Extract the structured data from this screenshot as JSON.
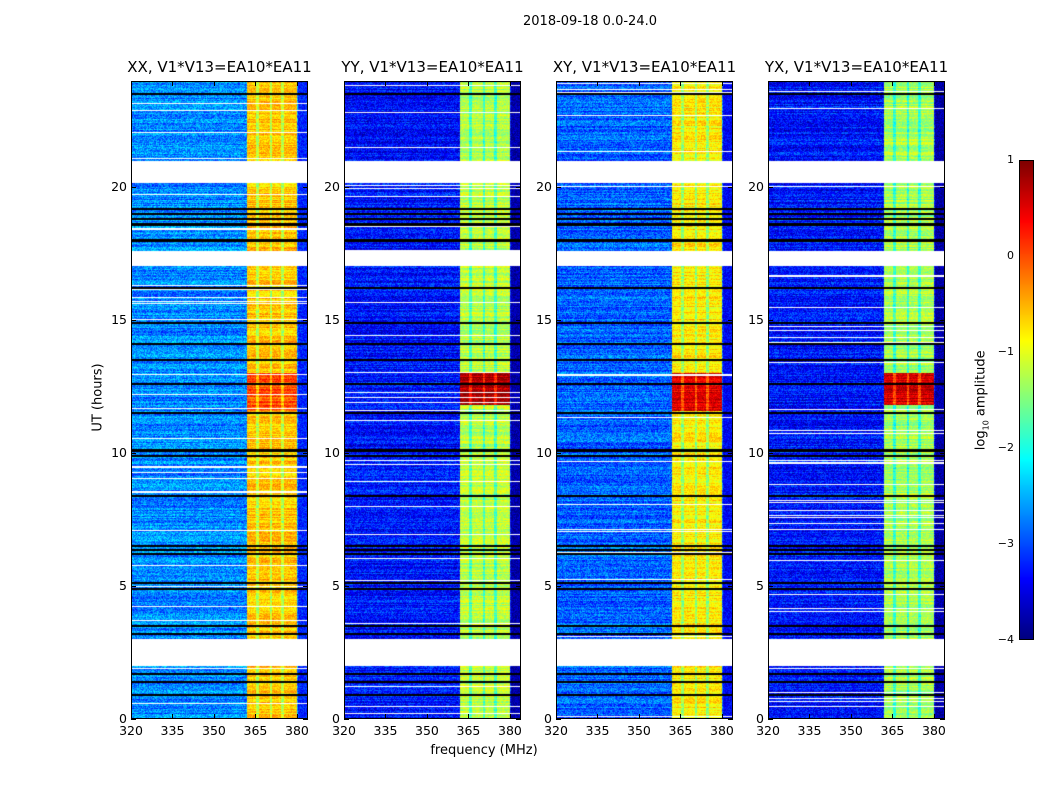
{
  "chart_data": {
    "type": "heatmap",
    "title": "2018-09-18 0.0-24.0",
    "xlabel": "frequency (MHz)",
    "ylabel": "UT (hours)",
    "xlim": [
      320,
      384
    ],
    "ylim": [
      0,
      24
    ],
    "xticks": [
      "320",
      "335",
      "350",
      "365",
      "380"
    ],
    "xtick_values": [
      320,
      335,
      350,
      365,
      380
    ],
    "yticks": [
      "0",
      "5",
      "10",
      "15",
      "20"
    ],
    "ytick_values": [
      0,
      5,
      10,
      15,
      20
    ],
    "colorbar": {
      "label_main": "log",
      "label_sub": "10",
      "label_tail": " amplitude",
      "range": [
        -4,
        1
      ],
      "ticks": [
        "1",
        "0",
        "−1",
        "−2",
        "−3",
        "−4"
      ],
      "tick_values": [
        1,
        0,
        -1,
        -2,
        -3,
        -4
      ],
      "colormap": "jet"
    },
    "gaps_ut": [
      [
        2.0,
        3.0
      ],
      [
        17.05,
        17.6
      ],
      [
        20.15,
        21.0
      ]
    ],
    "flagged_rows_ut": [
      0.9,
      1.4,
      1.7,
      3.2,
      3.5,
      4.9,
      5.1,
      6.2,
      6.35,
      6.5,
      8.4,
      9.9,
      10.1,
      11.5,
      12.6,
      13.5,
      14.1,
      14.9,
      16.2,
      18.0,
      18.6,
      18.8,
      19.0,
      19.2,
      23.5,
      24.0
    ],
    "band_mhz": [
      362,
      380
    ],
    "band_dips_mhz": [
      365.8,
      370.6,
      374.8
    ],
    "panels": [
      {
        "title": "XX, V1*V13=EA10*EA11",
        "background_log": -2.7,
        "band_log": -0.6,
        "burst_log": 0.0,
        "burst_ut": [
          11.6,
          13.0
        ]
      },
      {
        "title": "YY, V1*V13=EA10*EA11",
        "background_log": -3.3,
        "band_log": -1.2,
        "burst_log": 0.8,
        "burst_ut": [
          11.8,
          13.0
        ]
      },
      {
        "title": "XY, V1*V13=EA10*EA11",
        "background_log": -2.9,
        "band_log": -0.8,
        "burst_log": 0.5,
        "burst_ut": [
          11.6,
          13.0
        ]
      },
      {
        "title": "YX, V1*V13=EA10*EA11",
        "background_log": -3.3,
        "band_log": -1.3,
        "burst_log": 0.6,
        "burst_ut": [
          11.8,
          13.0
        ]
      }
    ]
  }
}
